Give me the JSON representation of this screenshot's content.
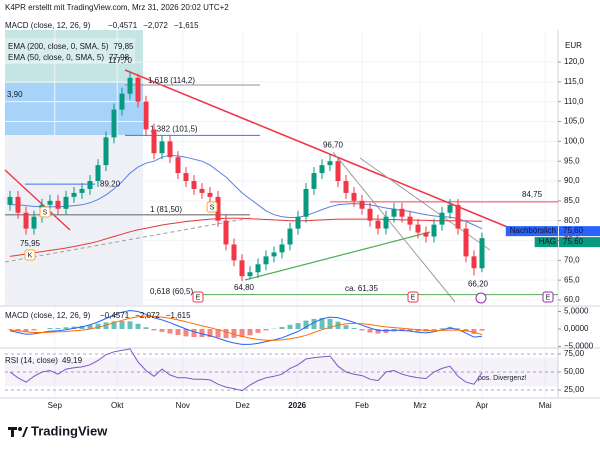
{
  "header": "K4PR erstellt mit TradingView.com, Mrz 31, 2026 20:02 UTC+2",
  "footer": "TradingView",
  "chart_data": [
    {
      "type": "candlestick",
      "currency": "EUR",
      "box_label": "3,90",
      "legend": [
        {
          "name": "EMA (200, close, 0, SMA, 5)",
          "value_label": "79,85",
          "color": "#e53935"
        },
        {
          "name": "EMA (50, close, 0, SMA, 5)",
          "value_label": "77,98",
          "color": "#5b7ee5"
        }
      ],
      "categories": [
        null,
        null,
        null,
        null,
        null,
        null,
        null,
        null,
        null,
        null,
        null,
        null,
        null,
        null,
        null,
        null,
        null,
        null,
        null,
        null,
        null,
        null,
        null,
        null,
        null,
        null,
        null,
        null,
        null,
        null,
        null,
        null,
        null,
        null,
        null,
        null,
        null,
        null,
        null,
        null,
        null,
        null,
        null,
        null,
        null,
        null,
        null,
        null,
        null,
        null,
        null,
        null,
        null,
        null,
        null,
        null,
        null,
        null,
        null,
        null
      ],
      "open": [
        84,
        86,
        82,
        78,
        81,
        84,
        85,
        83,
        86,
        87,
        88,
        90,
        94,
        101,
        108,
        112,
        116,
        110,
        103,
        97,
        100,
        96,
        92,
        90,
        88,
        87,
        86,
        80,
        74,
        70,
        66,
        67,
        69,
        71,
        72,
        74,
        78,
        81,
        88,
        92,
        94,
        95,
        90,
        87,
        85,
        83,
        80,
        78,
        81,
        83,
        81,
        79,
        77,
        76,
        79,
        82,
        84,
        78,
        71,
        68
      ],
      "high": [
        87.5,
        87.5,
        83.5,
        82.5,
        85.5,
        86.5,
        86.5,
        87.5,
        88.5,
        89.5,
        91.5,
        95.5,
        102.5,
        109.5,
        113.5,
        117.7,
        117,
        111.5,
        104.5,
        101.5,
        101.5,
        97.5,
        93.5,
        91.5,
        89.5,
        88.5,
        87.5,
        81.5,
        75.5,
        71.5,
        68.5,
        70.5,
        72.5,
        73.5,
        75.5,
        79.5,
        82.5,
        89.5,
        93.5,
        95.5,
        96.7,
        96,
        91.5,
        88.5,
        86.5,
        84.5,
        81.5,
        82.5,
        84.5,
        84.5,
        82.5,
        80.5,
        78.5,
        80.5,
        83.5,
        85.5,
        85.5,
        79.5,
        72.5,
        77
      ],
      "low": [
        82.5,
        80.5,
        76.5,
        76.5,
        79.5,
        82.5,
        81.5,
        81.5,
        84.5,
        85.5,
        86.5,
        88.5,
        92.5,
        99.5,
        106.5,
        110.5,
        108.5,
        101.5,
        95.5,
        95.5,
        94.5,
        90.5,
        88.5,
        86.5,
        85.5,
        84.5,
        78.5,
        72.5,
        68.5,
        64.8,
        65.2,
        65.5,
        67.5,
        69.5,
        70.5,
        72.5,
        76.5,
        79.5,
        86.5,
        90.5,
        92.5,
        88.5,
        85.5,
        83.5,
        81.5,
        78.5,
        76.5,
        76.5,
        79.5,
        79.5,
        77.5,
        75.5,
        74.5,
        74.5,
        77.5,
        80.5,
        76.5,
        69.5,
        66.2,
        67
      ],
      "close": [
        86,
        82,
        78,
        81,
        84,
        85,
        83,
        86,
        87,
        88,
        90,
        94,
        101,
        108,
        112,
        116,
        110,
        103,
        97,
        100,
        96,
        92,
        90,
        88,
        87,
        86,
        80,
        74,
        70,
        66,
        67,
        69,
        71,
        72,
        74,
        78,
        81,
        88,
        92,
        94,
        95,
        90,
        87,
        85,
        83,
        80,
        78,
        81,
        83,
        81,
        79,
        77,
        76,
        79,
        82,
        84,
        78,
        71,
        68,
        75.6
      ],
      "up_color": "#089981",
      "down_color": "#f23645",
      "series": [
        {
          "color": "#e53935",
          "values": [
            71,
            71.3,
            71.6,
            71.9,
            72.2,
            72.5,
            72.8,
            73.1,
            73.5,
            73.9,
            74.3,
            74.8,
            75.4,
            76,
            76.6,
            77.2,
            77.7,
            78.1,
            78.5,
            78.9,
            79.2,
            79.5,
            79.8,
            80,
            80.2,
            80.4,
            80.5,
            80.6,
            80.6,
            80.6,
            80.5,
            80.4,
            80.3,
            80.2,
            80.1,
            80,
            80,
            80,
            80.1,
            80.2,
            80.3,
            80.4,
            80.4,
            80.4,
            80.4,
            80.4,
            80.4,
            80.3,
            80.3,
            80.2,
            80.2,
            80.1,
            80.1,
            80,
            80,
            80,
            80,
            79.95,
            79.9,
            79.85
          ]
        },
        {
          "color": "#5b7ee5",
          "values": [
            84,
            84,
            83.8,
            83.6,
            83.5,
            83.5,
            83.5,
            83.6,
            83.8,
            84,
            84.5,
            85.3,
            86.5,
            88,
            89.8,
            92,
            93.5,
            94.5,
            95,
            96,
            96.5,
            96.3,
            96,
            95.5,
            95,
            94,
            92.5,
            91,
            89,
            87,
            85.5,
            84,
            82.5,
            81.5,
            81,
            80.8,
            80.8,
            81.3,
            82,
            82.8,
            83.5,
            84,
            84.2,
            84.3,
            84.2,
            84,
            83.6,
            83.2,
            82.9,
            82.6,
            82.3,
            81.9,
            81.5,
            81.2,
            81,
            80.9,
            80.5,
            79.8,
            78.9,
            77.98
          ]
        }
      ],
      "annotations": [
        {
          "label": "117,70",
          "value": 117.7,
          "color": "#2962ff"
        },
        {
          "label": "1,618 (114,2)",
          "value": 114.2,
          "color": "#888888"
        },
        {
          "label": "1,382 (101,5)",
          "value": 101.5,
          "color": "#2962ff"
        },
        {
          "label": "1 (81,50)",
          "value": 81.5,
          "color": "#888888"
        },
        {
          "label": "0,618 (60,5)",
          "value": 60.5,
          "color": "#999999"
        },
        {
          "label": "89,20",
          "value": 89.2,
          "color": "#2962ff"
        },
        {
          "label": "84,75",
          "value": 84.75,
          "color": "#f23645"
        },
        {
          "label": "75,95",
          "value": 75.95,
          "color": "#2962ff"
        },
        {
          "label": "64,80",
          "value": 64.8,
          "color": "#2962ff"
        },
        {
          "label": "96,70",
          "value": 96.7,
          "color": "#2962ff"
        },
        {
          "label": "66,20",
          "value": 66.2,
          "color": "#2962ff"
        },
        {
          "label": "ca. 61,35",
          "value": 61.35,
          "color": "#43a047"
        }
      ],
      "badges": [
        {
          "name": "Nachbörslich",
          "price": {
            "value": 75.6,
            "label": "75,60"
          },
          "color": "#2962ff"
        },
        {
          "name": "HAG",
          "price": {
            "value": 75.6,
            "label": "75,60"
          },
          "color": "#089981"
        }
      ],
      "events": [
        {
          "label": "E"
        },
        {
          "label": "E"
        },
        {
          "label": "E"
        },
        {
          "label": "S"
        },
        {
          "label": "S"
        },
        {
          "label": "K"
        }
      ],
      "xlim": [
        -0.625,
        68.5
      ],
      "xticks": [
        {
          "value": 5.6,
          "label": "Sep"
        },
        {
          "value": 13.4,
          "label": "Okt"
        },
        {
          "value": 21.6,
          "label": "Nov"
        },
        {
          "value": 29.1,
          "label": "Dez"
        },
        {
          "value": 35.9,
          "label": "2026"
        },
        {
          "value": 44,
          "label": "Feb"
        },
        {
          "value": 51.25,
          "label": "Mrz"
        },
        {
          "value": 59,
          "label": "Apr"
        },
        {
          "value": 66.9,
          "label": "Mai"
        }
      ],
      "ylim": [
        58.74,
        128.07
      ],
      "yticks": [
        {
          "value": 120,
          "label": "120,0"
        },
        {
          "value": 115,
          "label": "115,0"
        },
        {
          "value": 110,
          "label": "110,0"
        },
        {
          "value": 105,
          "label": "105,0"
        },
        {
          "value": 100,
          "label": "100,0"
        },
        {
          "value": 95,
          "label": "95,0"
        },
        {
          "value": 90,
          "label": "90,0"
        },
        {
          "value": 85,
          "label": "85,0"
        },
        {
          "value": 80,
          "label": "80,0"
        },
        {
          "value": 75,
          "label": "75,0"
        },
        {
          "value": 70,
          "label": "70,0"
        },
        {
          "value": 65,
          "label": "65,0"
        },
        {
          "value": 60,
          "label": "60,0"
        }
      ],
      "grid": true
    },
    {
      "type": "macd",
      "title": "MACD (close, 12, 26, 9)",
      "legend_values": [
        {
          "label": "−0,4571",
          "color": "#f23645"
        },
        {
          "label": "−2,072",
          "color": "#2962ff"
        },
        {
          "label": "−1,615",
          "color": "#ff6d00"
        }
      ],
      "histogram": [
        -0.2,
        -0.5,
        -0.7,
        -0.4,
        0,
        0.3,
        0.3,
        0.5,
        0.7,
        0.9,
        1.2,
        1.5,
        1.9,
        2.2,
        2.3,
        2.2,
        1.5,
        0.5,
        -0.4,
        -0.8,
        -1.3,
        -1.7,
        -2.1,
        -2.3,
        -2.3,
        -2.3,
        -2.4,
        -2.6,
        -2.5,
        -2.3,
        -1.8,
        -1.1,
        -0.4,
        0.1,
        0.6,
        1.2,
        1.7,
        2.4,
        2.9,
        3.1,
        2.9,
        2.1,
        1.1,
        0.3,
        -0.4,
        -1,
        -1.3,
        -1.1,
        -0.7,
        -0.6,
        -0.6,
        -0.7,
        -0.7,
        -0.3,
        0.2,
        0.6,
        0.2,
        -0.7,
        -1.4,
        -0.457
      ],
      "hist_colors": [
        "#26a69a",
        "#ef5350"
      ],
      "series": [
        {
          "color": "#2962ff",
          "values": [
            -0.5,
            -1,
            -1.5,
            -1.4,
            -1,
            -0.6,
            -0.5,
            -0.2,
            0.2,
            0.6,
            1.2,
            2,
            3,
            4,
            4.8,
            5.3,
            5,
            4.2,
            3.2,
            2.6,
            1.8,
            0.9,
            0,
            -0.8,
            -1.4,
            -1.9,
            -2.6,
            -3.4,
            -4,
            -4.4,
            -4.4,
            -4.1,
            -3.6,
            -3.1,
            -2.5,
            -1.6,
            -0.7,
            0.6,
            1.9,
            2.9,
            3.4,
            3.2,
            2.6,
            1.9,
            1.1,
            0.3,
            -0.4,
            -0.5,
            -0.3,
            -0.4,
            -0.6,
            -0.9,
            -1.1,
            -0.8,
            -0.2,
            0.3,
            -0.1,
            -1.2,
            -2.3,
            -2.072
          ]
        },
        {
          "color": "#ff6d00",
          "values": [
            -0.3,
            -0.5,
            -0.8,
            -1,
            -1,
            -0.9,
            -0.8,
            -0.7,
            -0.5,
            -0.3,
            0,
            0.5,
            1.1,
            1.8,
            2.5,
            3.1,
            3.5,
            3.7,
            3.6,
            3.4,
            3.1,
            2.6,
            2.1,
            1.5,
            0.9,
            0.4,
            -0.2,
            -0.8,
            -1.5,
            -2.1,
            -2.6,
            -3,
            -3.2,
            -3.2,
            -3.1,
            -2.8,
            -2.4,
            -1.8,
            -1,
            -0.2,
            0.5,
            1.1,
            1.5,
            1.6,
            1.5,
            1.3,
            0.9,
            0.6,
            0.4,
            0.2,
            0,
            -0.2,
            -0.4,
            -0.5,
            -0.4,
            -0.3,
            -0.3,
            -0.5,
            -0.9,
            -1.615
          ]
        }
      ],
      "ylim": [
        -5.14,
        6.29
      ],
      "yticks": [
        {
          "value": 5,
          "label": "5,0000"
        },
        {
          "value": 0,
          "label": "0,0000"
        },
        {
          "value": -5,
          "label": "−5,0000"
        }
      ]
    },
    {
      "type": "rsi",
      "title": "RSI (14, close)",
      "legend_values": [
        {
          "label": "49,19",
          "color": "#7e57c2"
        }
      ],
      "annotation": "pos. Divergenz!",
      "series": [
        {
          "color": "#7e57c2",
          "values": [
            50,
            42,
            36,
            44,
            50,
            52,
            47,
            54,
            56,
            57,
            60,
            66,
            74,
            78,
            80,
            82,
            64,
            52,
            44,
            54,
            46,
            42,
            42,
            40,
            40,
            39,
            33,
            29,
            27,
            24,
            32,
            38,
            42,
            44,
            47,
            55,
            60,
            68,
            70,
            71,
            72,
            58,
            50,
            47,
            45,
            40,
            38,
            50,
            52,
            47,
            44,
            42,
            41,
            50,
            55,
            58,
            44,
            36,
            33,
            49.19
          ]
        }
      ],
      "band": [
        30,
        70
      ],
      "ylim": [
        15.3,
        81.9
      ],
      "yticks": [
        {
          "value": 75,
          "label": "75,00"
        },
        {
          "value": 50,
          "label": "50,00"
        },
        {
          "value": 25,
          "label": "25,00"
        }
      ]
    }
  ]
}
